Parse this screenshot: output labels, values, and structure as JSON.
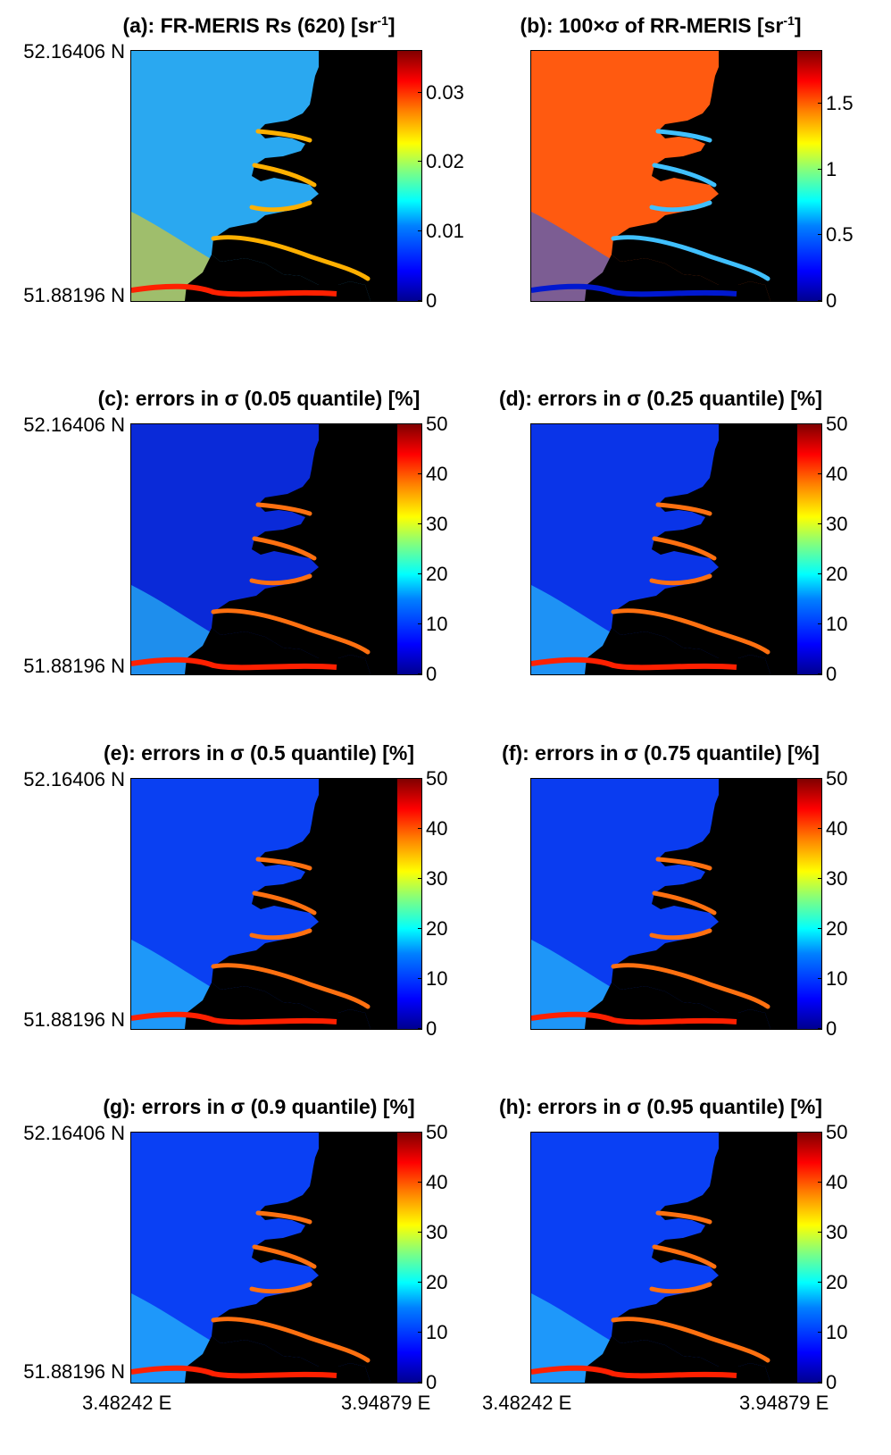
{
  "page": {
    "lat_top": "52.16406 N",
    "lat_bottom": "51.88196 N",
    "lon_left": "3.48242 E",
    "lon_right": "3.94879 E"
  },
  "colormap": "jet",
  "panels": [
    {
      "id": "a",
      "title_main": "(a): FR-MERIS Rs (620) [sr",
      "title_sup": "-1",
      "title_end": "]",
      "ticks": [
        "0.03",
        "0.02",
        "0.01",
        "0"
      ],
      "tick_values": [
        0.03,
        0.02,
        0.01,
        0
      ],
      "vmax": 0.036,
      "background": "#2aa8f0"
    },
    {
      "id": "b",
      "title_main": "(b): 100×σ of RR-MERIS [sr",
      "title_sup": "-1",
      "title_end": "]",
      "ticks": [
        "1.5",
        "1",
        "0.5",
        "0"
      ],
      "tick_values": [
        1.5,
        1,
        0.5,
        0
      ],
      "vmax": 1.9,
      "background": "#ff5a10"
    },
    {
      "id": "c",
      "title_main": "(c): errors in σ (0.05 quantile) [%]",
      "title_sup": "",
      "title_end": "",
      "ticks": [
        "50",
        "40",
        "30",
        "20",
        "10",
        "0"
      ],
      "tick_values": [
        50,
        40,
        30,
        20,
        10,
        0
      ],
      "vmax": 50,
      "background": "#0a2ad8"
    },
    {
      "id": "d",
      "title_main": "(d): errors in σ (0.25 quantile) [%]",
      "title_sup": "",
      "title_end": "",
      "ticks": [
        "50",
        "40",
        "30",
        "20",
        "10",
        "0"
      ],
      "tick_values": [
        50,
        40,
        30,
        20,
        10,
        0
      ],
      "vmax": 50,
      "background": "#0a34e8"
    },
    {
      "id": "e",
      "title_main": "(e): errors in σ (0.5 quantile) [%]",
      "title_sup": "",
      "title_end": "",
      "ticks": [
        "50",
        "40",
        "30",
        "20",
        "10",
        "0"
      ],
      "tick_values": [
        50,
        40,
        30,
        20,
        10,
        0
      ],
      "vmax": 50,
      "background": "#0a40f2"
    },
    {
      "id": "f",
      "title_main": "(f): errors in σ (0.75 quantile) [%]",
      "title_sup": "",
      "title_end": "",
      "ticks": [
        "50",
        "40",
        "30",
        "20",
        "10",
        "0"
      ],
      "tick_values": [
        50,
        40,
        30,
        20,
        10,
        0
      ],
      "vmax": 50,
      "background": "#0a3cf0"
    },
    {
      "id": "g",
      "title_main": "(g): errors in σ (0.9 quantile) [%]",
      "title_sup": "",
      "title_end": "",
      "ticks": [
        "50",
        "40",
        "30",
        "20",
        "10",
        "0"
      ],
      "tick_values": [
        50,
        40,
        30,
        20,
        10,
        0
      ],
      "vmax": 50,
      "background": "#0a40f4"
    },
    {
      "id": "h",
      "title_main": "(h): errors in σ (0.95 quantile) [%]",
      "title_sup": "",
      "title_end": "",
      "ticks": [
        "50",
        "40",
        "30",
        "20",
        "10",
        "0"
      ],
      "tick_values": [
        50,
        40,
        30,
        20,
        10,
        0
      ],
      "vmax": 50,
      "background": "#0a40f4"
    }
  ]
}
